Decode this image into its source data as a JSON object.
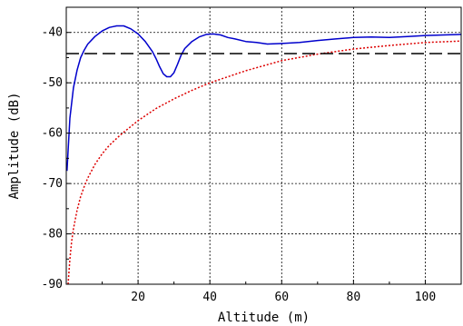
{
  "chart_data": {
    "type": "line",
    "xlabel": "Altitude (m)",
    "ylabel": "Amplitude (dB)",
    "xlim": [
      0,
      110
    ],
    "ylim": [
      -90,
      -35
    ],
    "xticks": [
      20,
      40,
      60,
      80,
      100
    ],
    "yticks": [
      -40,
      -50,
      -60,
      -70,
      -80,
      -90
    ],
    "xtick_labels": [
      "20",
      "40",
      "60",
      "80",
      "100"
    ],
    "ytick_labels": [
      "-40",
      "-50",
      "-60",
      "-70",
      "-80",
      "-90"
    ],
    "grid": true,
    "series": [
      {
        "color": "#0000cc",
        "style": "solid",
        "x": [
          0.2,
          1,
          2,
          3,
          4,
          5,
          6,
          8,
          10,
          12,
          14,
          16,
          18,
          20,
          22,
          24,
          25,
          26,
          27,
          28,
          29,
          30,
          31,
          32,
          33,
          35,
          37,
          39,
          41,
          43,
          45,
          47,
          50,
          53,
          56,
          60,
          65,
          70,
          75,
          80,
          85,
          90,
          95,
          100,
          105,
          110
        ],
        "y": [
          -67.5,
          -57,
          -51,
          -47.5,
          -45,
          -43.5,
          -42.3,
          -40.8,
          -39.7,
          -39,
          -38.7,
          -38.7,
          -39.3,
          -40.3,
          -41.8,
          -43.8,
          -45.2,
          -46.8,
          -48.2,
          -48.8,
          -48.8,
          -48,
          -46.3,
          -44.5,
          -43.2,
          -41.8,
          -40.9,
          -40.4,
          -40.3,
          -40.5,
          -41,
          -41.3,
          -41.8,
          -42,
          -42.3,
          -42.2,
          -42,
          -41.6,
          -41.3,
          -41,
          -40.9,
          -41,
          -40.8,
          -40.6,
          -40.5,
          -40.4
        ]
      },
      {
        "color": "#dd0000",
        "style": "dotted",
        "x": [
          0.5,
          1,
          1.5,
          2,
          3,
          4,
          5,
          6,
          8,
          10,
          12,
          15,
          20,
          25,
          30,
          35,
          40,
          50,
          60,
          70,
          80,
          90,
          100,
          110
        ],
        "y": [
          -90,
          -85,
          -81.5,
          -79,
          -75.3,
          -72.6,
          -70.6,
          -68.9,
          -66.2,
          -64.1,
          -62.4,
          -60.4,
          -57.5,
          -55.1,
          -53.2,
          -51.5,
          -50,
          -47.6,
          -45.6,
          -44.3,
          -43.3,
          -42.6,
          -42,
          -41.7
        ]
      },
      {
        "color": "#000000",
        "style": "dashed",
        "x": [
          0,
          110
        ],
        "y": [
          -44.2,
          -44.2
        ]
      }
    ]
  }
}
